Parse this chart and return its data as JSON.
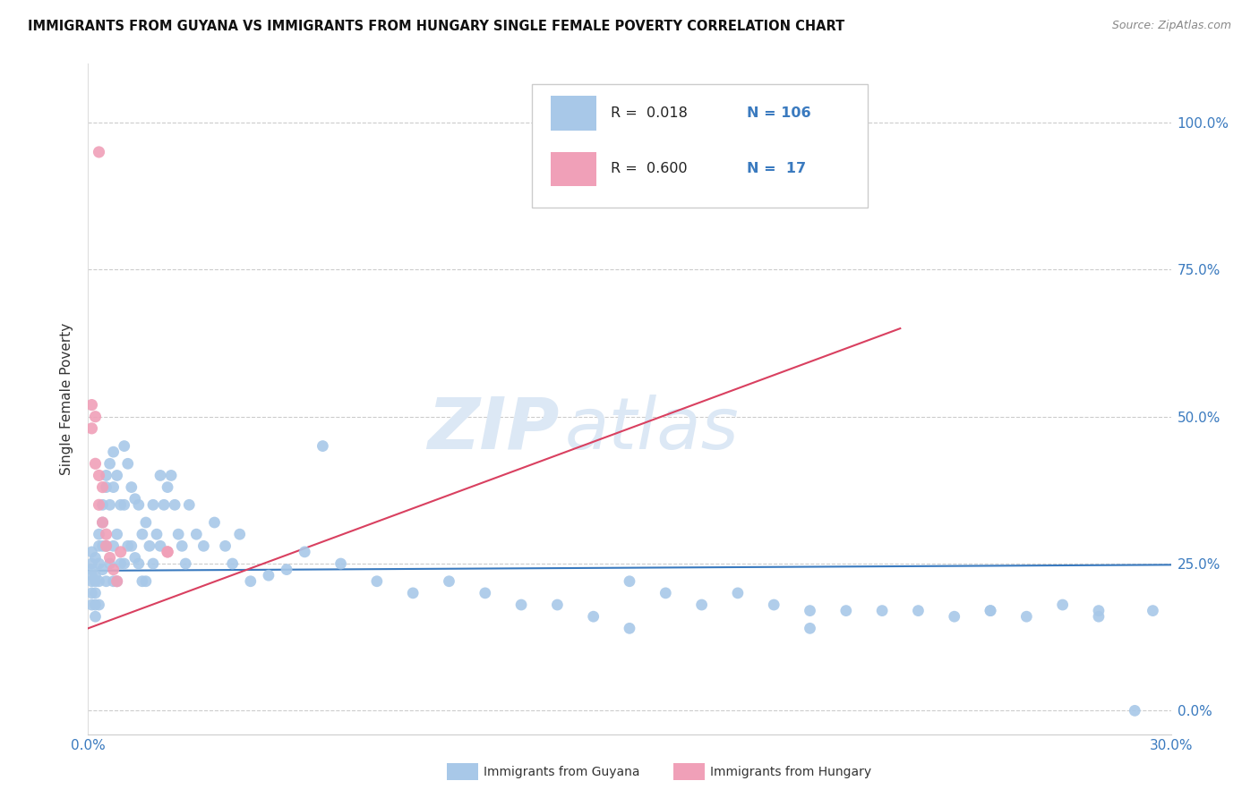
{
  "title": "IMMIGRANTS FROM GUYANA VS IMMIGRANTS FROM HUNGARY SINGLE FEMALE POVERTY CORRELATION CHART",
  "source": "Source: ZipAtlas.com",
  "ylabel": "Single Female Poverty",
  "ytick_labels": [
    "100.0%",
    "75.0%",
    "50.0%",
    "25.0%",
    "0.0%"
  ],
  "ytick_positions": [
    1.0,
    0.75,
    0.5,
    0.25,
    0.0
  ],
  "xlim": [
    0.0,
    0.3
  ],
  "ylim": [
    -0.04,
    1.1
  ],
  "color_guyana": "#a8c8e8",
  "color_hungary": "#f0a0b8",
  "trendline_guyana_color": "#3a7abf",
  "trendline_hungary_color": "#d94060",
  "watermark_zip": "ZIP",
  "watermark_atlas": "atlas",
  "watermark_color": "#dce8f5",
  "guyana_x": [
    0.001,
    0.001,
    0.001,
    0.001,
    0.001,
    0.001,
    0.001,
    0.002,
    0.002,
    0.002,
    0.002,
    0.002,
    0.002,
    0.003,
    0.003,
    0.003,
    0.003,
    0.003,
    0.004,
    0.004,
    0.004,
    0.004,
    0.005,
    0.005,
    0.005,
    0.005,
    0.006,
    0.006,
    0.006,
    0.007,
    0.007,
    0.007,
    0.007,
    0.008,
    0.008,
    0.008,
    0.009,
    0.009,
    0.01,
    0.01,
    0.01,
    0.011,
    0.011,
    0.012,
    0.012,
    0.013,
    0.013,
    0.014,
    0.014,
    0.015,
    0.015,
    0.016,
    0.016,
    0.017,
    0.018,
    0.018,
    0.019,
    0.02,
    0.02,
    0.021,
    0.022,
    0.023,
    0.024,
    0.025,
    0.026,
    0.027,
    0.028,
    0.03,
    0.032,
    0.035,
    0.038,
    0.04,
    0.042,
    0.045,
    0.05,
    0.055,
    0.06,
    0.065,
    0.07,
    0.08,
    0.09,
    0.1,
    0.11,
    0.12,
    0.13,
    0.14,
    0.15,
    0.16,
    0.17,
    0.18,
    0.19,
    0.2,
    0.21,
    0.22,
    0.23,
    0.24,
    0.25,
    0.26,
    0.27,
    0.28,
    0.29,
    0.295,
    0.15,
    0.2,
    0.25,
    0.28
  ],
  "guyana_y": [
    0.22,
    0.25,
    0.27,
    0.2,
    0.18,
    0.23,
    0.24,
    0.26,
    0.22,
    0.2,
    0.18,
    0.23,
    0.16,
    0.3,
    0.28,
    0.25,
    0.22,
    0.18,
    0.35,
    0.32,
    0.28,
    0.24,
    0.4,
    0.38,
    0.28,
    0.22,
    0.42,
    0.35,
    0.25,
    0.44,
    0.38,
    0.28,
    0.22,
    0.4,
    0.3,
    0.22,
    0.35,
    0.25,
    0.45,
    0.35,
    0.25,
    0.42,
    0.28,
    0.38,
    0.28,
    0.36,
    0.26,
    0.35,
    0.25,
    0.3,
    0.22,
    0.32,
    0.22,
    0.28,
    0.35,
    0.25,
    0.3,
    0.4,
    0.28,
    0.35,
    0.38,
    0.4,
    0.35,
    0.3,
    0.28,
    0.25,
    0.35,
    0.3,
    0.28,
    0.32,
    0.28,
    0.25,
    0.3,
    0.22,
    0.23,
    0.24,
    0.27,
    0.45,
    0.25,
    0.22,
    0.2,
    0.22,
    0.2,
    0.18,
    0.18,
    0.16,
    0.22,
    0.2,
    0.18,
    0.2,
    0.18,
    0.17,
    0.17,
    0.17,
    0.17,
    0.16,
    0.17,
    0.16,
    0.18,
    0.16,
    0.0,
    0.17,
    0.14,
    0.14,
    0.17,
    0.17
  ],
  "hungary_x": [
    0.001,
    0.001,
    0.002,
    0.002,
    0.003,
    0.003,
    0.004,
    0.004,
    0.005,
    0.005,
    0.006,
    0.007,
    0.008,
    0.009,
    0.022,
    0.022,
    0.003
  ],
  "hungary_y": [
    0.52,
    0.48,
    0.5,
    0.42,
    0.4,
    0.35,
    0.38,
    0.32,
    0.3,
    0.28,
    0.26,
    0.24,
    0.22,
    0.27,
    0.27,
    0.27,
    0.95
  ],
  "guyana_trend_x": [
    0.0,
    0.3
  ],
  "guyana_trend_y": [
    0.238,
    0.248
  ],
  "hungary_trend_x": [
    0.0,
    0.225
  ],
  "hungary_trend_y": [
    0.14,
    0.65
  ]
}
